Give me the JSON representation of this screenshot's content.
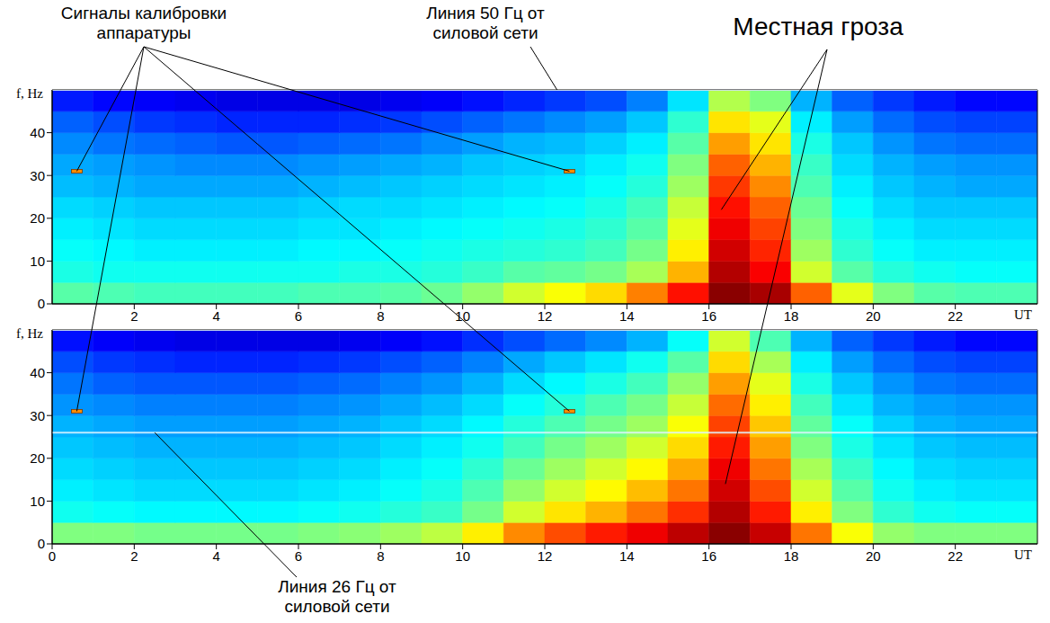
{
  "chart_data": [
    {
      "type": "heatmap",
      "xlabel": "UT",
      "ylabel": "f, Hz",
      "xlim": [
        0,
        24
      ],
      "ylim": [
        0,
        50
      ],
      "xticks": [
        2,
        4,
        6,
        8,
        10,
        12,
        14,
        16,
        18,
        20,
        22
      ],
      "yticks": [
        0,
        10,
        20,
        30,
        40
      ],
      "x_bins": [
        0,
        1,
        2,
        3,
        4,
        5,
        6,
        7,
        8,
        9,
        10,
        11,
        12,
        13,
        14,
        15,
        16,
        17,
        18,
        19,
        20,
        21,
        22,
        23,
        24
      ],
      "y_bins": [
        0,
        5,
        10,
        15,
        20,
        25,
        30,
        35,
        40,
        45,
        50
      ],
      "color_range": [
        0,
        10
      ],
      "cells": [
        [
          4.6,
          4.5,
          4.4,
          4.4,
          4.4,
          4.4,
          4.5,
          4.5,
          4.6,
          4.8,
          5.2,
          5.8,
          6.2,
          6.6,
          7.5,
          8.6,
          9.9,
          9.6,
          7.8,
          6.0,
          5.0,
          4.6,
          4.5,
          4.5
        ],
        [
          4.0,
          3.9,
          3.9,
          3.9,
          3.9,
          3.9,
          3.9,
          4.0,
          4.0,
          4.1,
          4.3,
          4.6,
          4.7,
          4.9,
          5.4,
          7.0,
          9.5,
          8.8,
          5.8,
          4.6,
          4.1,
          3.9,
          3.8,
          3.8
        ],
        [
          3.8,
          3.7,
          3.6,
          3.6,
          3.6,
          3.6,
          3.7,
          3.7,
          3.8,
          3.9,
          4.0,
          4.1,
          4.2,
          4.4,
          4.9,
          6.4,
          9.2,
          8.4,
          5.3,
          4.2,
          3.8,
          3.6,
          3.6,
          3.6
        ],
        [
          3.6,
          3.5,
          3.4,
          3.4,
          3.4,
          3.4,
          3.5,
          3.5,
          3.6,
          3.7,
          3.8,
          3.9,
          4.0,
          4.2,
          4.6,
          6.0,
          8.9,
          8.1,
          5.0,
          4.0,
          3.6,
          3.4,
          3.4,
          3.4
        ],
        [
          3.4,
          3.3,
          3.2,
          3.2,
          3.2,
          3.2,
          3.3,
          3.4,
          3.4,
          3.5,
          3.6,
          3.7,
          3.8,
          4.0,
          4.4,
          5.7,
          8.6,
          7.8,
          4.8,
          3.8,
          3.4,
          3.2,
          3.2,
          3.2
        ],
        [
          3.1,
          3.0,
          2.9,
          2.9,
          2.9,
          2.9,
          3.0,
          3.1,
          3.2,
          3.3,
          3.4,
          3.5,
          3.6,
          3.8,
          4.1,
          5.3,
          8.2,
          7.4,
          4.5,
          3.6,
          3.2,
          3.0,
          2.9,
          2.9
        ],
        [
          2.9,
          2.8,
          2.7,
          2.6,
          2.6,
          2.6,
          2.7,
          2.8,
          2.9,
          3.0,
          3.2,
          3.3,
          3.4,
          3.6,
          3.9,
          5.0,
          7.8,
          7.0,
          4.3,
          3.4,
          3.0,
          2.8,
          2.7,
          2.7
        ],
        [
          2.6,
          2.4,
          2.3,
          2.2,
          2.1,
          2.1,
          2.2,
          2.3,
          2.4,
          2.6,
          2.8,
          3.0,
          3.1,
          3.3,
          3.6,
          4.6,
          7.2,
          6.5,
          4.0,
          3.2,
          2.7,
          2.4,
          2.3,
          2.3
        ],
        [
          2.2,
          2.0,
          1.8,
          1.7,
          1.6,
          1.6,
          1.6,
          1.7,
          1.8,
          2.0,
          2.2,
          2.4,
          2.6,
          2.8,
          3.2,
          4.2,
          6.5,
          6.0,
          3.6,
          2.8,
          2.3,
          2.0,
          1.9,
          1.9
        ],
        [
          1.5,
          1.3,
          1.2,
          1.1,
          1.0,
          1.0,
          1.0,
          1.0,
          1.1,
          1.2,
          1.4,
          1.6,
          1.8,
          2.0,
          2.5,
          3.5,
          5.5,
          5.0,
          3.0,
          2.2,
          1.8,
          1.5,
          1.3,
          1.3
        ]
      ],
      "power_lines": [
        50
      ],
      "calibration_signals": {
        "x": [
          0.6,
          12.6
        ],
        "y": [
          31,
          31
        ],
        "color": "#ff8c00"
      }
    },
    {
      "type": "heatmap",
      "xlabel": "UT",
      "ylabel": "f, Hz",
      "xlim": [
        0,
        24
      ],
      "ylim": [
        0,
        50
      ],
      "xticks": [
        0,
        2,
        4,
        6,
        8,
        10,
        12,
        14,
        16,
        18,
        20,
        22
      ],
      "yticks": [
        0,
        10,
        20,
        30,
        40
      ],
      "x_bins": [
        0,
        1,
        2,
        3,
        4,
        5,
        6,
        7,
        8,
        9,
        10,
        11,
        12,
        13,
        14,
        15,
        16,
        17,
        18,
        19,
        20,
        21,
        22,
        23,
        24
      ],
      "y_bins": [
        0,
        5,
        10,
        15,
        20,
        25,
        30,
        35,
        40,
        45,
        50
      ],
      "color_range": [
        0,
        10
      ],
      "cells": [
        [
          5.0,
          5.0,
          4.9,
          4.9,
          4.9,
          4.9,
          5.0,
          5.1,
          5.3,
          5.6,
          6.4,
          7.4,
          8.0,
          8.5,
          8.9,
          9.4,
          9.9,
          9.3,
          7.6,
          6.2,
          5.2,
          5.0,
          5.0,
          5.0
        ],
        [
          3.9,
          3.8,
          3.7,
          3.7,
          3.7,
          3.7,
          3.8,
          3.9,
          4.1,
          4.3,
          4.9,
          5.8,
          6.5,
          7.0,
          7.6,
          8.3,
          9.5,
          8.5,
          6.4,
          5.0,
          4.2,
          3.9,
          3.8,
          3.8
        ],
        [
          3.6,
          3.5,
          3.4,
          3.4,
          3.4,
          3.4,
          3.5,
          3.6,
          3.8,
          4.0,
          4.5,
          5.2,
          5.8,
          6.3,
          6.9,
          7.6,
          9.2,
          8.0,
          5.8,
          4.6,
          3.9,
          3.6,
          3.5,
          3.5
        ],
        [
          3.4,
          3.3,
          3.2,
          3.2,
          3.2,
          3.2,
          3.3,
          3.4,
          3.6,
          3.8,
          4.2,
          4.8,
          5.3,
          5.8,
          6.3,
          7.1,
          8.9,
          7.6,
          5.4,
          4.3,
          3.7,
          3.4,
          3.3,
          3.3
        ],
        [
          3.2,
          3.1,
          3.0,
          3.0,
          3.0,
          3.0,
          3.1,
          3.2,
          3.4,
          3.6,
          3.9,
          4.4,
          4.9,
          5.3,
          5.8,
          6.6,
          8.5,
          7.2,
          5.0,
          4.0,
          3.5,
          3.2,
          3.1,
          3.1
        ],
        [
          3.0,
          2.9,
          2.8,
          2.8,
          2.8,
          2.8,
          2.9,
          3.0,
          3.2,
          3.4,
          3.7,
          4.1,
          4.5,
          4.9,
          5.3,
          6.2,
          8.1,
          6.8,
          4.7,
          3.8,
          3.3,
          3.0,
          2.9,
          2.9
        ],
        [
          2.7,
          2.6,
          2.5,
          2.5,
          2.5,
          2.5,
          2.6,
          2.7,
          2.9,
          3.1,
          3.4,
          3.8,
          4.1,
          4.5,
          4.9,
          5.7,
          7.7,
          6.4,
          4.4,
          3.5,
          3.0,
          2.8,
          2.7,
          2.7
        ],
        [
          2.4,
          2.2,
          2.1,
          2.1,
          2.1,
          2.1,
          2.2,
          2.3,
          2.5,
          2.7,
          3.0,
          3.4,
          3.7,
          4.0,
          4.4,
          5.2,
          7.2,
          6.0,
          4.0,
          3.2,
          2.7,
          2.4,
          2.3,
          2.3
        ],
        [
          2.0,
          1.8,
          1.7,
          1.6,
          1.6,
          1.6,
          1.7,
          1.8,
          2.0,
          2.2,
          2.5,
          2.9,
          3.2,
          3.5,
          3.9,
          4.6,
          6.6,
          5.4,
          3.6,
          2.8,
          2.3,
          2.0,
          1.9,
          1.9
        ],
        [
          1.4,
          1.2,
          1.1,
          1.0,
          1.0,
          1.0,
          1.0,
          1.1,
          1.2,
          1.4,
          1.7,
          2.0,
          2.3,
          2.6,
          3.0,
          3.8,
          5.8,
          4.5,
          3.0,
          2.2,
          1.8,
          1.5,
          1.3,
          1.3
        ]
      ],
      "power_lines": [
        50,
        26
      ],
      "calibration_signals": {
        "x": [
          0.6,
          12.6
        ],
        "y": [
          31,
          31
        ],
        "color": "#ff8c00"
      }
    }
  ],
  "annotations": [
    {
      "text": "Сигналы калибровки аппаратуры",
      "targets": [
        {
          "panel": 0,
          "x": 0.6,
          "y": 31
        },
        {
          "panel": 0,
          "x": 12.6,
          "y": 31
        },
        {
          "panel": 1,
          "x": 0.6,
          "y": 31
        },
        {
          "panel": 1,
          "x": 12.6,
          "y": 31
        }
      ]
    },
    {
      "text": "Линия 50 Гц от силовой сети",
      "targets": [
        {
          "panel": 0,
          "x": 12.3,
          "y": 50
        }
      ]
    },
    {
      "text": "Местная гроза",
      "targets": [
        {
          "panel": 0,
          "x": 16.3,
          "y": 22
        },
        {
          "panel": 1,
          "x": 16.4,
          "y": 14
        }
      ]
    },
    {
      "text": "Линия 26 Гц от силовой сети",
      "targets": [
        {
          "panel": 1,
          "x": 2.5,
          "y": 26
        }
      ]
    }
  ]
}
